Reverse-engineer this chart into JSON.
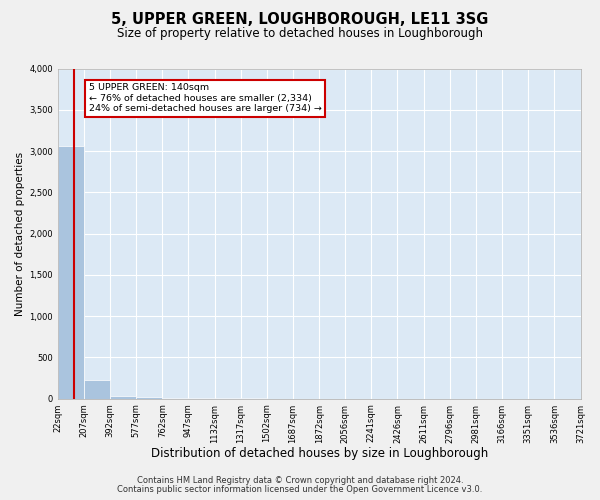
{
  "title": "5, UPPER GREEN, LOUGHBOROUGH, LE11 3SG",
  "subtitle": "Size of property relative to detached houses in Loughborough",
  "xlabel": "Distribution of detached houses by size in Loughborough",
  "ylabel": "Number of detached properties",
  "footnote1": "Contains HM Land Registry data © Crown copyright and database right 2024.",
  "footnote2": "Contains public sector information licensed under the Open Government Licence v3.0.",
  "annotation_title": "5 UPPER GREEN: 140sqm",
  "annotation_line1": "← 76% of detached houses are smaller (2,334)",
  "annotation_line2": "24% of semi-detached houses are larger (734) →",
  "bar_edges": [
    22,
    207,
    392,
    577,
    762,
    947,
    1132,
    1317,
    1502,
    1687,
    1872,
    2056,
    2241,
    2426,
    2611,
    2796,
    2981,
    3166,
    3351,
    3536,
    3721
  ],
  "bar_heights": [
    3060,
    230,
    30,
    15,
    10,
    5,
    4,
    3,
    2,
    2,
    1,
    1,
    1,
    1,
    0,
    0,
    0,
    0,
    0,
    0
  ],
  "bar_color": "#aac4de",
  "bar_edgecolor": "#ffffff",
  "property_size": 140,
  "redline_color": "#cc0000",
  "annotation_box_color": "#ffffff",
  "annotation_box_edgecolor": "#cc0000",
  "background_color": "#dce9f5",
  "fig_background": "#f0f0f0",
  "ylim": [
    0,
    4000
  ],
  "yticks": [
    0,
    500,
    1000,
    1500,
    2000,
    2500,
    3000,
    3500,
    4000
  ],
  "title_fontsize": 10.5,
  "subtitle_fontsize": 8.5,
  "xlabel_fontsize": 8.5,
  "ylabel_fontsize": 7.5,
  "tick_fontsize": 6.0,
  "footnote_fontsize": 6.0
}
